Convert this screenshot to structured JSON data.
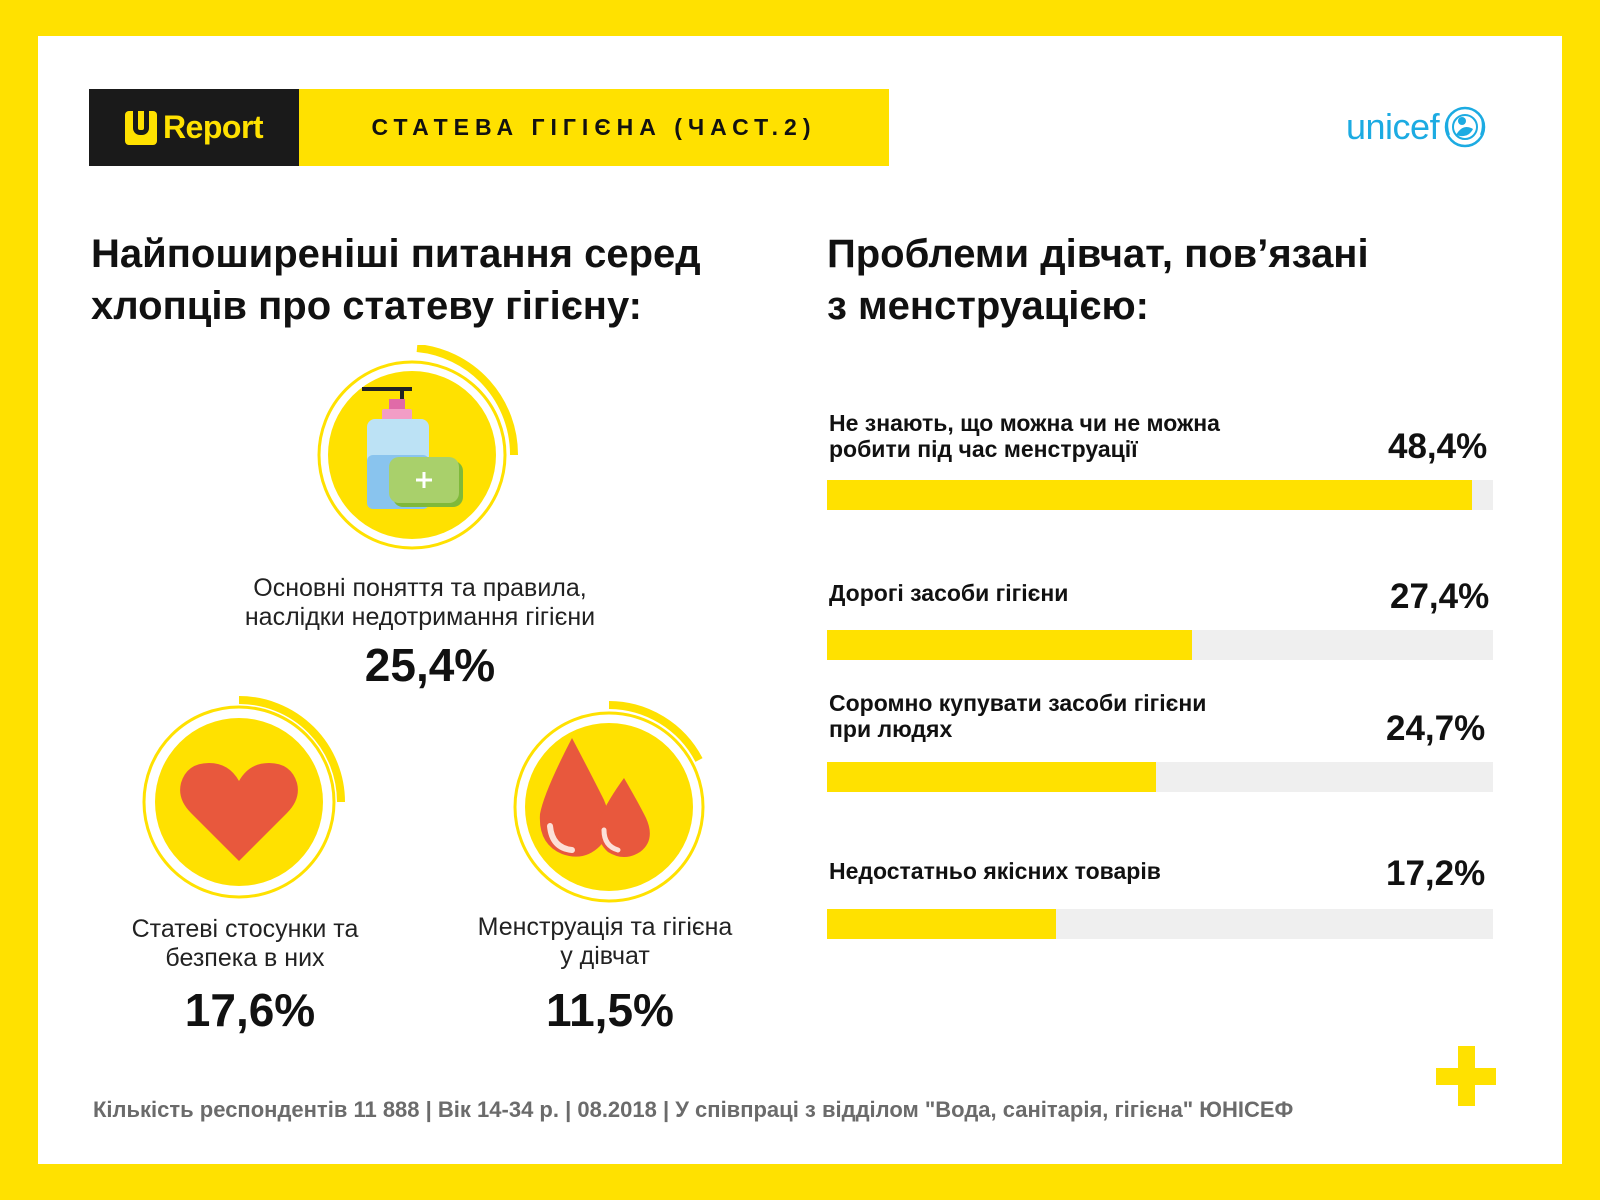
{
  "header": {
    "brand": "Report",
    "banner": "СТАТЕВА ГІГІЄНА (ЧАСТ.2)",
    "partner": "unicef"
  },
  "left_section": {
    "title_line1": "Найпоширеніші питання серед",
    "title_line2": "хлопців про статеву гігієну:",
    "items": [
      {
        "label_line1": "Основні поняття та правила,",
        "label_line2": "наслідки недотримання гігієни",
        "value": "25,4%",
        "icon": "soap-bottle-icon"
      },
      {
        "label_line1": "Статеві стосунки та",
        "label_line2": "безпека в них",
        "value": "17,6%",
        "icon": "heart-icon"
      },
      {
        "label_line1": "Менструація та гігієна",
        "label_line2": "у дівчат",
        "value": "11,5%",
        "icon": "blood-drops-icon"
      }
    ]
  },
  "right_section": {
    "title_line1": "Проблеми дівчат, пов’язані",
    "title_line2": "з менструацією:"
  },
  "chart_data": {
    "type": "bar",
    "orientation": "horizontal",
    "categories": [
      "Не знають, що можна чи не можна робити під час менструації",
      "Дорогі засоби гігієни",
      "Соромно купувати засоби гігієни при людях",
      "Недостатньо якісних товарів"
    ],
    "category_lines": [
      [
        "Не знають, що можна чи не можна",
        "робити під час менструації"
      ],
      [
        "Дорогі засоби гігієни"
      ],
      [
        "Соромно купувати засоби гігієни",
        "при людях"
      ],
      [
        "Недостатньо якісних товарів"
      ]
    ],
    "values": [
      48.4,
      27.4,
      24.7,
      17.2
    ],
    "value_labels": [
      "48,4%",
      "27,4%",
      "24,7%",
      "17,2%"
    ],
    "bar_scale_max": 50,
    "bar_color": "#FFE100",
    "track_color": "#EFEFEF"
  },
  "footer": {
    "text": "Кількість респондентів 11 888 |  Вік 14-34 р.  |  08.2018 | У співпраці з відділом \"Вода, санітарія, гігієна\" ЮНІСЕФ"
  },
  "colors": {
    "background": "#FFE100",
    "accent": "#FFE100",
    "unicef_blue": "#1CABE2",
    "heart": "#E8583D"
  }
}
